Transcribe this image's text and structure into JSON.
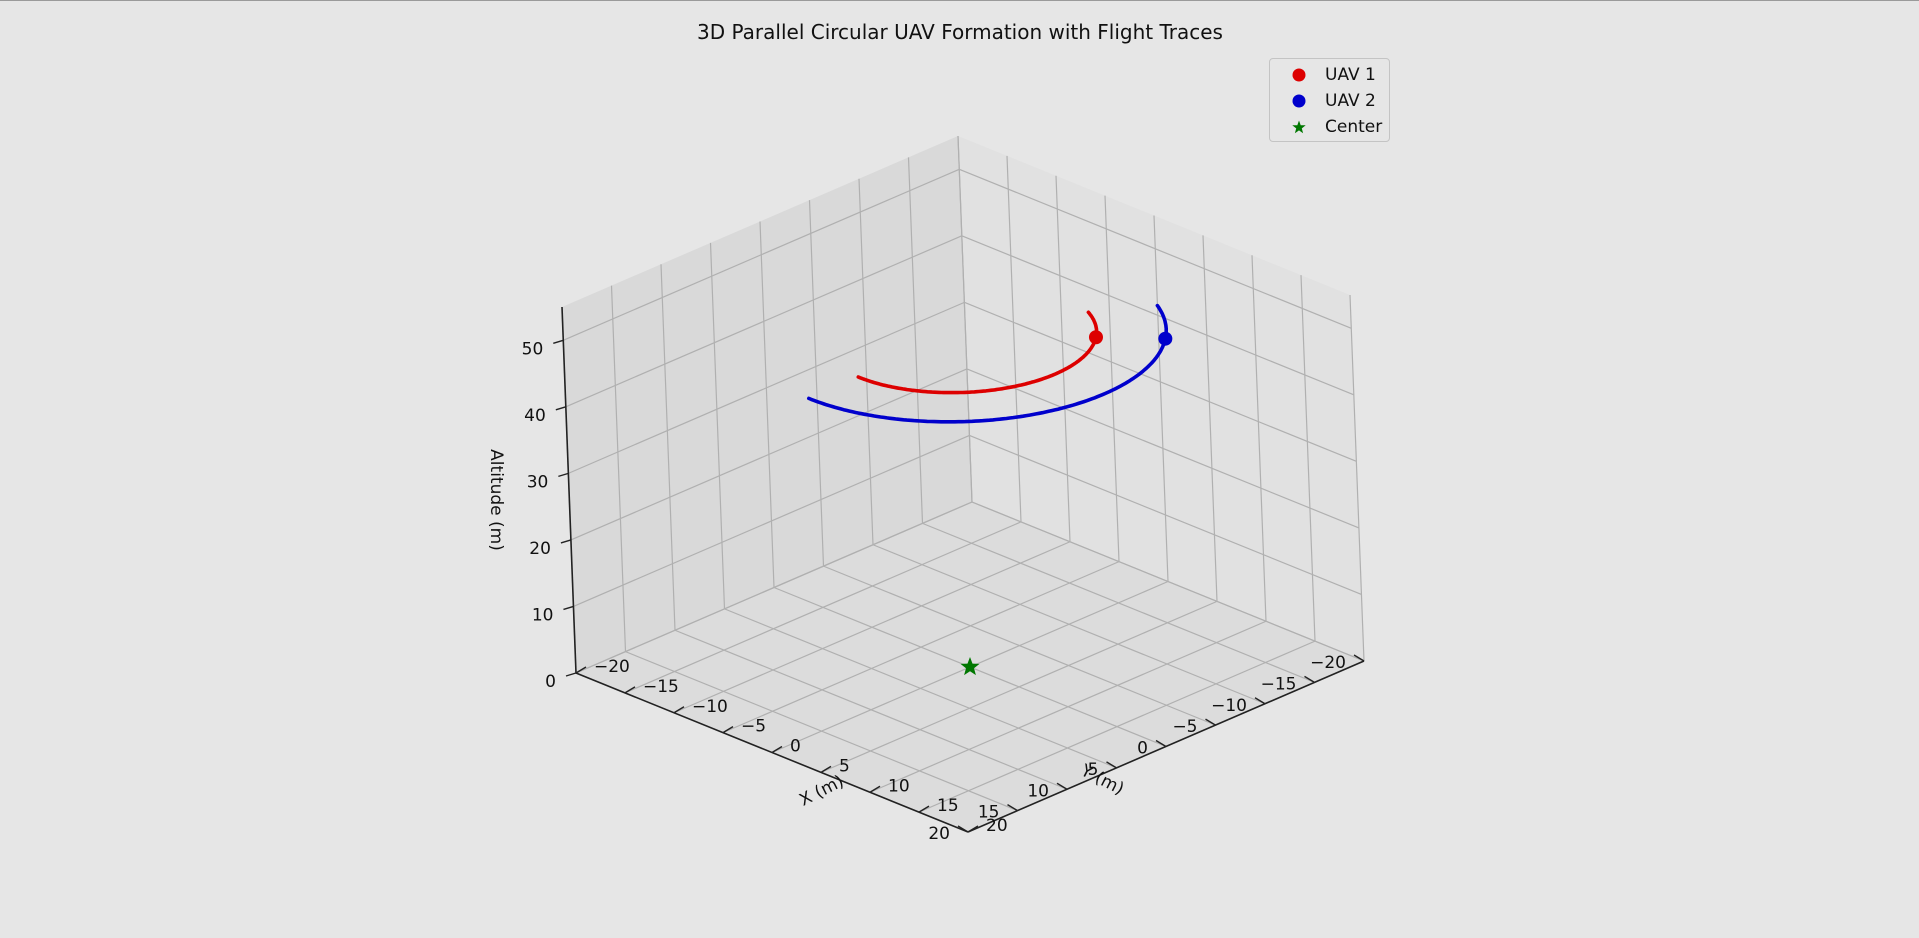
{
  "chart_data": {
    "type": "line3d",
    "title": "3D Parallel Circular UAV Formation with Flight Traces",
    "xlabel": "X (m)",
    "ylabel": "Y (m)",
    "zlabel": "Altitude (m)",
    "xlim": [
      -20,
      20
    ],
    "ylim": [
      -20,
      20
    ],
    "zlim": [
      0,
      55
    ],
    "xticks": [
      -20,
      -15,
      -10,
      -5,
      0,
      5,
      10,
      15,
      20
    ],
    "yticks": [
      -20,
      -15,
      -10,
      -5,
      0,
      5,
      10,
      15,
      20
    ],
    "zticks": [
      0,
      10,
      20,
      30,
      40,
      50
    ],
    "grid": true,
    "legend_position": "top-right",
    "series": [
      {
        "name": "UAV 1",
        "color": "#dd0000",
        "radius": 10,
        "altitude": 50,
        "trace_start_deg": 90,
        "trace_end_deg": -65,
        "marker_deg": -40
      },
      {
        "name": "UAV 2",
        "color": "#0000cc",
        "radius": 15,
        "altitude": 50,
        "trace_start_deg": 90,
        "trace_end_deg": -62,
        "marker_deg": -40
      }
    ],
    "center": {
      "name": "Center",
      "x": 0,
      "y": 0,
      "z": 0,
      "color": "#007700"
    }
  }
}
